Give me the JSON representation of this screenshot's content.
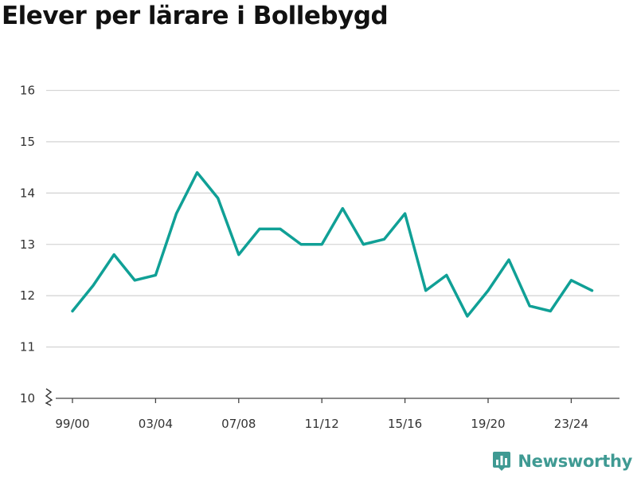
{
  "brand": {
    "name": "Newsworthy",
    "icon": "bar-chart-pin-icon",
    "color": "#3f9a93"
  },
  "chart_data": {
    "type": "line",
    "title": "Elever per lärare i Bollebygd",
    "xlabel": "",
    "ylabel": "",
    "x": [
      "99/00",
      "00/01",
      "01/02",
      "02/03",
      "03/04",
      "04/05",
      "05/06",
      "06/07",
      "07/08",
      "08/09",
      "09/10",
      "10/11",
      "11/12",
      "12/13",
      "13/14",
      "14/15",
      "15/16",
      "16/17",
      "17/18",
      "18/19",
      "19/20",
      "20/21",
      "21/22",
      "22/23",
      "23/24",
      "24/25"
    ],
    "x_tick_labels": [
      "99/00",
      "03/04",
      "07/08",
      "11/12",
      "15/16",
      "19/20",
      "23/24"
    ],
    "y_ticks": [
      10,
      11,
      12,
      13,
      14,
      15,
      16
    ],
    "ylim": [
      10,
      16
    ],
    "y_axis_break": true,
    "grid": true,
    "series": [
      {
        "color": "#10a096",
        "values": [
          11.7,
          12.2,
          12.8,
          12.3,
          12.4,
          13.6,
          14.4,
          13.9,
          12.8,
          13.3,
          13.3,
          13.0,
          13.0,
          13.7,
          13.0,
          13.1,
          13.6,
          12.1,
          12.4,
          11.6,
          12.1,
          12.7,
          11.8,
          11.7,
          12.3,
          12.1
        ]
      }
    ]
  }
}
